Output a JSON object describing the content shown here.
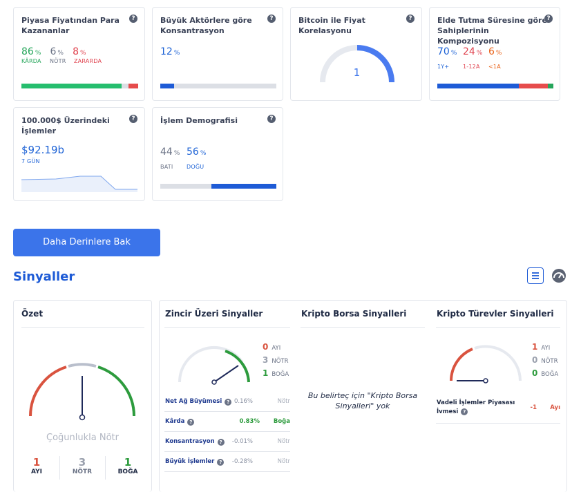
{
  "cards": {
    "profit": {
      "title": "Piyasa Fiyatından Para Kazananlar",
      "in_value": "86",
      "in_label": "KÂRDA",
      "neutral_value": "6",
      "neutral_label": "NÖTR",
      "out_value": "8",
      "out_label": "ZARARDA",
      "pct": "%"
    },
    "concentration": {
      "title": "Büyük Aktörlere göre Konsantrasyon",
      "value": "12",
      "pct": "%"
    },
    "correlation": {
      "title": "Bitcoin ile Fiyat Korelasyonu",
      "value": "1"
    },
    "holding": {
      "title": "Elde Tutma Süresine göre Sahiplerinin Kompozisyonu",
      "v1": "70",
      "l1": "1Y+",
      "v2": "24",
      "l2": "1-12A",
      "v3": "6",
      "l3": "<1A",
      "pct": "%"
    },
    "large_tx": {
      "title": "100.000$ Üzerindeki İşlemler",
      "value": "$92.19b",
      "period": "7 GÜN"
    },
    "demographics": {
      "title": "İşlem Demografisi",
      "west_value": "44",
      "west_label": "BATI",
      "east_value": "56",
      "east_label": "DOĞU",
      "pct": "%"
    }
  },
  "deeper_button": "Daha Derinlere Bak",
  "signals": {
    "title": "Sinyaller",
    "list_view_icon": "list-icon",
    "gauge_view_icon": "speedometer-icon",
    "summary": {
      "title": "Özet",
      "verdict": "Çoğunlukla Nötr",
      "bear_value": "1",
      "bear_label": "AYI",
      "neutral_value": "3",
      "neutral_label": "NÖTR",
      "bull_value": "1",
      "bull_label": "BOĞA"
    },
    "onchain": {
      "title": "Zincir Üzeri Sinyaller",
      "bear_value": "0",
      "bear_label": "AYI",
      "neutral_value": "3",
      "neutral_label": "NÖTR",
      "bull_value": "1",
      "bull_label": "BOĞA",
      "rows": [
        {
          "label": "Net Ağ Büyümesi",
          "value": "0.16%",
          "result": "Nötr"
        },
        {
          "label": "Kârda",
          "value": "0.83%",
          "result": "Boğa"
        },
        {
          "label": "Konsantrasyon",
          "value": "-0.01%",
          "result": "Nötr"
        },
        {
          "label": "Büyük İşlemler",
          "value": "-0.28%",
          "result": "Nötr"
        }
      ]
    },
    "exchange": {
      "title": "Kripto Borsa Sinyalleri",
      "empty_text": "Bu belirteç için \"Kripto Borsa Sinyalleri\" yok"
    },
    "derivatives": {
      "title": "Kripto Türevler Sinyalleri",
      "bear_value": "1",
      "bear_label": "AYI",
      "neutral_value": "0",
      "neutral_label": "NÖTR",
      "bull_value": "0",
      "bull_label": "BOĞA",
      "row_label": "Vadeli İşlemler Piyasası İvmesi",
      "row_value": "-1",
      "row_result": "Ayı"
    }
  },
  "colors": {
    "green": "#26a65b",
    "red": "#e0434f",
    "blue": "#1e63d6",
    "orange": "#e9631a",
    "button": "#3b74ea"
  }
}
